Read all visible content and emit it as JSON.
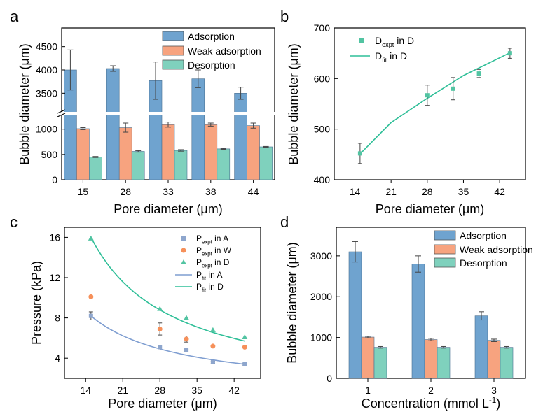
{
  "colors": {
    "adsorption": "#6fa3cf",
    "weak": "#f7a37f",
    "desorption": "#7fd1bd",
    "pointA": "#8ea6cd",
    "pointW": "#f6905a",
    "pointD": "#52c4a2",
    "lineA": "#7f9ed1",
    "lineD": "#2fbf98"
  },
  "chart_data": [
    {
      "panel": "a",
      "type": "bar",
      "xlabel": "Pore diameter (μm)",
      "ylabel": "Bubble diameter (μm)",
      "categories": [
        "15",
        "28",
        "33",
        "38",
        "44"
      ],
      "y_break": true,
      "ylim_lower": [
        0,
        1300
      ],
      "ylim_upper": [
        3100,
        4900
      ],
      "yticks": [
        "0",
        "500",
        "1000",
        "3500",
        "4000",
        "4500"
      ],
      "legend_position": "top-right",
      "series": [
        {
          "name": "Adsorption",
          "values": [
            4000,
            4030,
            3770,
            3810,
            3500
          ],
          "errors": [
            430,
            60,
            400,
            190,
            130
          ]
        },
        {
          "name": "Weak adsorption",
          "values": [
            1010,
            1030,
            1090,
            1090,
            1070
          ],
          "errors": [
            20,
            90,
            50,
            30,
            50
          ]
        },
        {
          "name": "Desorption",
          "values": [
            450,
            560,
            580,
            610,
            650
          ],
          "errors": [
            10,
            15,
            15,
            8,
            8
          ]
        }
      ]
    },
    {
      "panel": "b",
      "type": "scatter",
      "xlabel": "Pore diameter (μm)",
      "ylabel": "Bubble diameter (μm)",
      "xlim": [
        10,
        47
      ],
      "ylim": [
        400,
        700
      ],
      "xticks": [
        "14",
        "21",
        "28",
        "35",
        "42"
      ],
      "yticks": [
        "400",
        "500",
        "600",
        "700"
      ],
      "legend_position": "top-left",
      "series": [
        {
          "name_main": "D",
          "name_sub": "expt",
          "name_tail": " in D",
          "x": [
            15,
            28,
            33,
            38,
            44
          ],
          "y": [
            452,
            567,
            580,
            610,
            650
          ],
          "errors": [
            20,
            20,
            22,
            8,
            10
          ]
        }
      ],
      "fit": {
        "name_main": "D",
        "name_sub": "fit",
        "name_tail": " in D",
        "x": [
          15,
          21,
          28,
          35,
          44
        ],
        "y": [
          451,
          513,
          561,
          606,
          651
        ]
      }
    },
    {
      "panel": "c",
      "type": "scatter",
      "xlabel": "Pore diameter (μm)",
      "ylabel": "Pressure (kPa)",
      "xlim": [
        10,
        47
      ],
      "ylim": [
        2,
        17
      ],
      "xticks": [
        "14",
        "21",
        "28",
        "35",
        "42"
      ],
      "yticks": [
        "4",
        "8",
        "12",
        "16"
      ],
      "legend_position": "top-right",
      "series": [
        {
          "name_main": "P",
          "name_sub": "expt",
          "name_tail": " in A",
          "marker": "square",
          "x": [
            15,
            28,
            33,
            38,
            44
          ],
          "y": [
            8.2,
            5.1,
            4.8,
            3.6,
            3.4
          ],
          "errors": [
            0.4,
            0,
            0.1,
            0.1,
            0.1
          ]
        },
        {
          "name_main": "P",
          "name_sub": "expt",
          "name_tail": " in W",
          "marker": "circle",
          "x": [
            15,
            28,
            33,
            38,
            44
          ],
          "y": [
            10.1,
            6.9,
            5.9,
            5.2,
            5.1
          ],
          "errors": [
            0,
            0.6,
            0.3,
            0,
            0
          ]
        },
        {
          "name_main": "P",
          "name_sub": "expt",
          "name_tail": " in D",
          "marker": "triangle",
          "x": [
            15,
            28,
            33,
            38,
            44
          ],
          "y": [
            15.9,
            8.9,
            8.0,
            6.8,
            6.1
          ],
          "errors": [
            0,
            0,
            0,
            0,
            0
          ]
        }
      ],
      "fits": [
        {
          "name_main": "P",
          "name_sub": "fit",
          "name_tail": " in A",
          "x": [
            15,
            21,
            28,
            35,
            44
          ],
          "y": [
            8.2,
            6.2,
            4.9,
            4.1,
            3.4
          ]
        },
        {
          "name_main": "P",
          "name_sub": "fit",
          "name_tail": " in D",
          "x": [
            15,
            21,
            28,
            35,
            44
          ],
          "y": [
            16.0,
            11.5,
            8.9,
            7.2,
            5.7
          ]
        }
      ]
    },
    {
      "panel": "d",
      "type": "bar",
      "xlabel_main": "Concentration (mmol L",
      "xlabel_sup": "-1",
      "xlabel_tail": ")",
      "ylabel": "Bubble diameter (μm)",
      "categories": [
        "1",
        "2",
        "3"
      ],
      "ylim": [
        0,
        3700
      ],
      "yticks": [
        "0",
        "1000",
        "2000",
        "3000"
      ],
      "legend_position": "top-right",
      "series": [
        {
          "name": "Adsorption",
          "values": [
            3100,
            2800,
            1530
          ],
          "errors": [
            250,
            200,
            100
          ]
        },
        {
          "name": "Weak adsorption",
          "values": [
            1010,
            950,
            930
          ],
          "errors": [
            20,
            30,
            30
          ]
        },
        {
          "name": "Desorption",
          "values": [
            760,
            760,
            760
          ],
          "errors": [
            20,
            20,
            20
          ]
        }
      ]
    }
  ],
  "panel_labels": [
    "a",
    "b",
    "c",
    "d"
  ]
}
